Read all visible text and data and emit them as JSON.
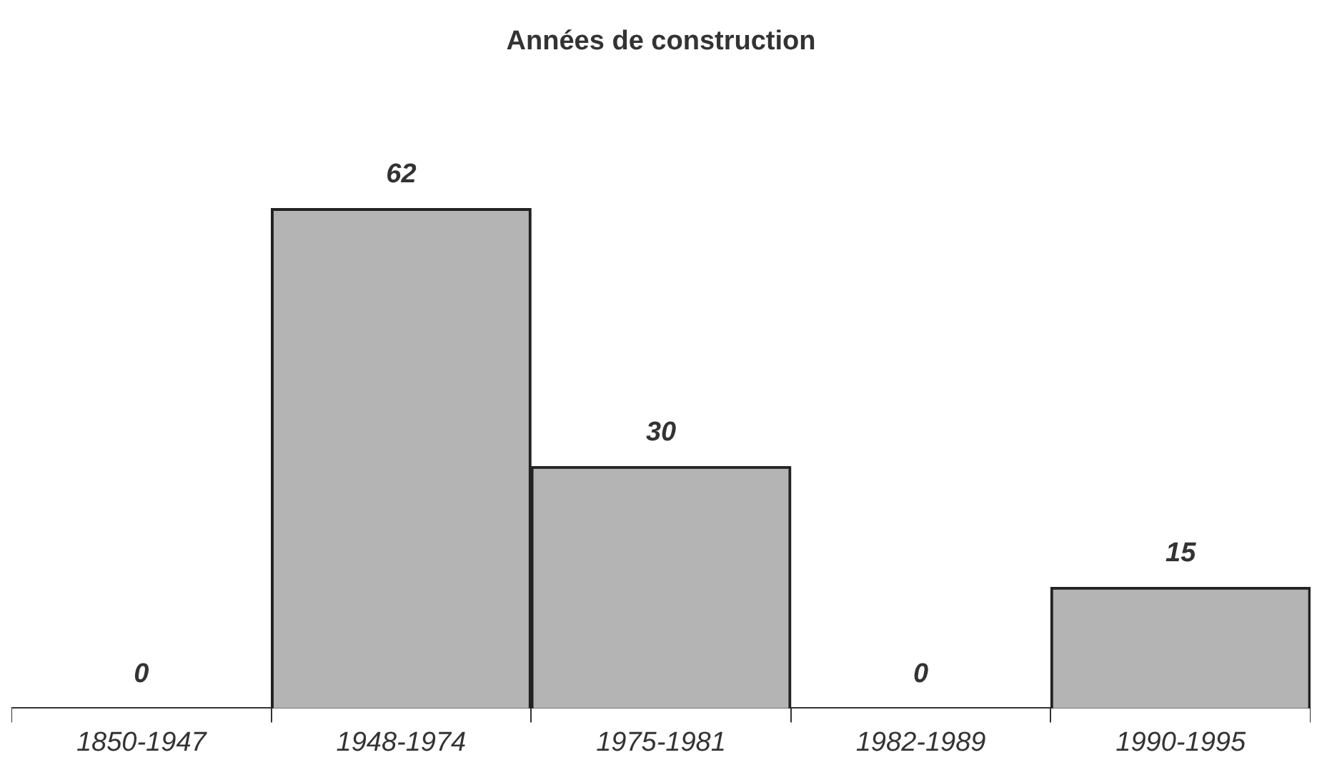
{
  "chart_data": {
    "type": "bar",
    "title": "Années de construction",
    "categories": [
      "1850-1947",
      "1948-1974",
      "1975-1981",
      "1982-1989",
      "1990-1995"
    ],
    "values": [
      0,
      62,
      30,
      0,
      15
    ],
    "color": "#b4b4b4",
    "data_labels": true,
    "grid": false,
    "legend": false
  }
}
